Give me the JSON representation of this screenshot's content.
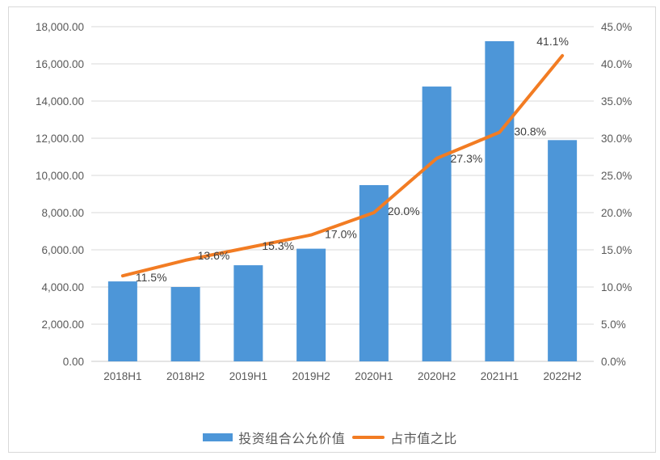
{
  "chart_data": {
    "type": "combo-bar-line",
    "categories": [
      "2018H1",
      "2018H2",
      "2019H1",
      "2019H2",
      "2020H1",
      "2020H2",
      "2021H1",
      "2022H2"
    ],
    "series": [
      {
        "name": "投资组合公允价值",
        "type": "bar",
        "axis": "left",
        "color": "#4d96d8",
        "values": [
          4300,
          4000,
          5170,
          6060,
          9480,
          14780,
          17220,
          11900
        ]
      },
      {
        "name": "占市值之比",
        "type": "line",
        "axis": "right",
        "color": "#f27c23",
        "values": [
          11.5,
          13.6,
          15.3,
          17.0,
          20.0,
          27.3,
          30.8,
          41.1
        ],
        "point_labels": [
          "11.5%",
          "13.6%",
          "15.3%",
          "17.0%",
          "20.0%",
          "27.3%",
          "30.8%",
          "41.1%"
        ]
      }
    ],
    "left_axis": {
      "min": 0,
      "max": 18000,
      "step": 2000,
      "tick_labels": [
        "0.00",
        "2,000.00",
        "4,000.00",
        "6,000.00",
        "8,000.00",
        "10,000.00",
        "12,000.00",
        "14,000.00",
        "16,000.00",
        "18,000.00"
      ]
    },
    "right_axis": {
      "min": 0,
      "max": 45,
      "step": 5,
      "tick_labels": [
        "0.0%",
        "5.0%",
        "10.0%",
        "15.0%",
        "20.0%",
        "25.0%",
        "30.0%",
        "35.0%",
        "40.0%",
        "45.0%"
      ]
    },
    "grid": true,
    "legend_position": "bottom",
    "title": ""
  },
  "colors": {
    "bar": "#4d96d8",
    "line": "#f27c23",
    "gridline": "#d9d9d9",
    "axis_line": "#c9c9c9",
    "tick_text": "#595959",
    "data_label_text": "#3f3f3f",
    "frame_border": "#d9d9d9"
  }
}
